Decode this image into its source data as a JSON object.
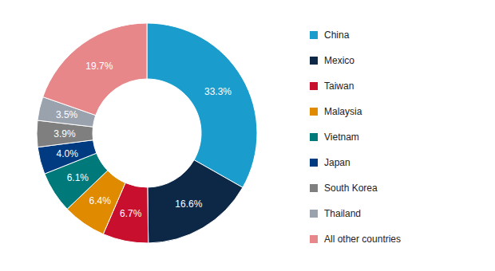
{
  "chart_data": {
    "type": "pie",
    "categories": [
      "China",
      "Mexico",
      "Taiwan",
      "Malaysia",
      "Vietnam",
      "Japan",
      "South Korea",
      "Thailand",
      "All other countries"
    ],
    "values": [
      33.3,
      16.6,
      6.7,
      6.4,
      6.1,
      4.0,
      3.9,
      3.5,
      19.7
    ],
    "value_labels": [
      "33.3%",
      "16.6%",
      "6.7%",
      "6.4%",
      "6.1%",
      "4.0%",
      "3.9%",
      "3.5%",
      "19.7%"
    ],
    "colors": [
      "#1a9ccc",
      "#0d2847",
      "#c8102e",
      "#e08a00",
      "#00797a",
      "#003a80",
      "#7f7f7f",
      "#9aa3ad",
      "#e8878a"
    ],
    "data_labels": true,
    "legend": "right"
  }
}
